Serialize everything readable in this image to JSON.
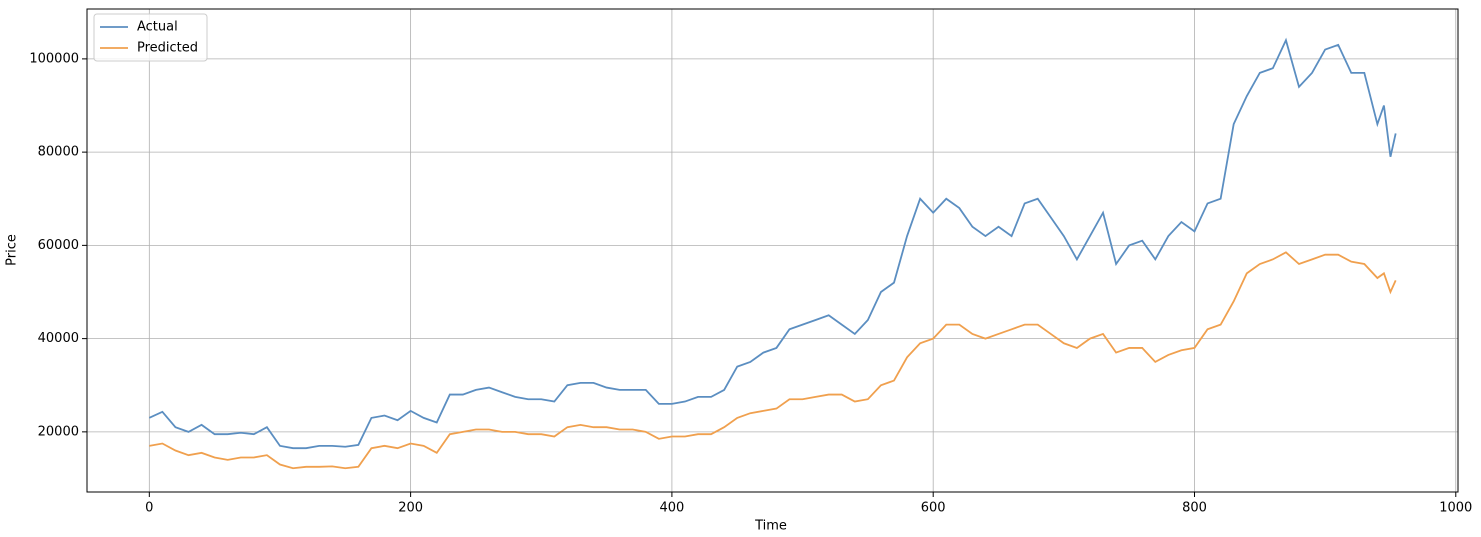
{
  "chart_data": {
    "type": "line",
    "x_label": "Time",
    "y_label": "Price",
    "x": [
      0,
      10,
      20,
      30,
      40,
      50,
      60,
      70,
      80,
      90,
      100,
      110,
      120,
      130,
      140,
      150,
      160,
      170,
      180,
      190,
      200,
      210,
      220,
      230,
      240,
      250,
      260,
      270,
      280,
      290,
      300,
      310,
      320,
      330,
      340,
      350,
      360,
      370,
      380,
      390,
      400,
      410,
      420,
      430,
      440,
      450,
      460,
      470,
      480,
      490,
      500,
      510,
      520,
      530,
      540,
      550,
      560,
      570,
      580,
      590,
      600,
      610,
      620,
      630,
      640,
      650,
      660,
      670,
      680,
      690,
      700,
      710,
      720,
      730,
      740,
      750,
      760,
      770,
      780,
      790,
      800,
      810,
      820,
      830,
      840,
      850,
      860,
      870,
      880,
      890,
      900,
      910,
      920,
      930,
      940,
      945,
      950,
      954
    ],
    "series": [
      {
        "name": "Actual",
        "color": "#5b8ec1",
        "values": [
          23000,
          24300,
          21000,
          20000,
          21500,
          19500,
          19500,
          19800,
          19500,
          21000,
          17000,
          16500,
          16500,
          17000,
          17000,
          16800,
          17200,
          23000,
          23500,
          22500,
          24500,
          23000,
          22000,
          28000,
          28000,
          29000,
          29500,
          28500,
          27500,
          27000,
          27000,
          26500,
          30000,
          30500,
          30500,
          29500,
          29000,
          29000,
          29000,
          26000,
          26000,
          26500,
          27500,
          27500,
          29000,
          34000,
          35000,
          37000,
          38000,
          42000,
          43000,
          44000,
          45000,
          43000,
          41000,
          44000,
          50000,
          52000,
          62000,
          70000,
          67000,
          70000,
          68000,
          64000,
          62000,
          64000,
          62000,
          69000,
          70000,
          66000,
          62000,
          57000,
          62000,
          67000,
          56000,
          60000,
          61000,
          57000,
          62000,
          65000,
          63000,
          69000,
          70000,
          86000,
          92000,
          97000,
          98000,
          104000,
          94000,
          97000,
          102000,
          103000,
          97000,
          97000,
          86000,
          90000,
          79000,
          84000
        ]
      },
      {
        "name": "Predicted",
        "color": "#f0a04e",
        "values": [
          17000,
          17500,
          16000,
          15000,
          15500,
          14500,
          14000,
          14500,
          14500,
          15000,
          13000,
          12200,
          12500,
          12500,
          12600,
          12200,
          12500,
          16500,
          17000,
          16500,
          17500,
          17000,
          15500,
          19500,
          20000,
          20500,
          20500,
          20000,
          20000,
          19500,
          19500,
          19000,
          21000,
          21500,
          21000,
          21000,
          20500,
          20500,
          20000,
          18500,
          19000,
          19000,
          19500,
          19500,
          21000,
          23000,
          24000,
          24500,
          25000,
          27000,
          27000,
          27500,
          28000,
          28000,
          26500,
          27000,
          30000,
          31000,
          36000,
          39000,
          40000,
          43000,
          43000,
          41000,
          40000,
          41000,
          42000,
          43000,
          43000,
          41000,
          39000,
          38000,
          40000,
          41000,
          37000,
          38000,
          38000,
          35000,
          36500,
          37500,
          38000,
          42000,
          43000,
          48000,
          54000,
          56000,
          57000,
          58500,
          56000,
          57000,
          58000,
          58000,
          56500,
          56000,
          53000,
          54000,
          50000,
          52500
        ]
      }
    ],
    "xlim": [
      -47.7,
      1001.7
    ],
    "xticks": [
      0,
      200,
      400,
      600,
      800,
      1000
    ],
    "ylim": [
      7100,
      110700
    ],
    "yticks": [
      20000,
      40000,
      60000,
      80000,
      100000
    ],
    "grid": true,
    "legend": "upper-left"
  }
}
